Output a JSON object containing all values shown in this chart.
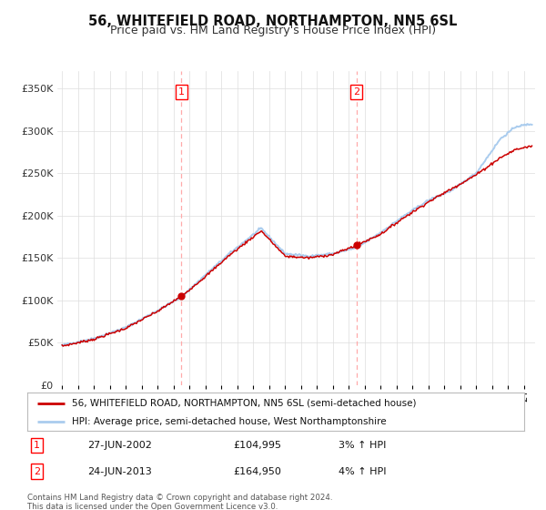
{
  "title": "56, WHITEFIELD ROAD, NORTHAMPTON, NN5 6SL",
  "subtitle": "Price paid vs. HM Land Registry's House Price Index (HPI)",
  "title_fontsize": 10.5,
  "subtitle_fontsize": 9,
  "legend_line1": "56, WHITEFIELD ROAD, NORTHAMPTON, NN5 6SL (semi-detached house)",
  "legend_line2": "HPI: Average price, semi-detached house, West Northamptonshire",
  "sale1_date": "27-JUN-2002",
  "sale1_price": "£104,995",
  "sale1_hpi": "3% ↑ HPI",
  "sale2_date": "24-JUN-2013",
  "sale2_price": "£164,950",
  "sale2_hpi": "4% ↑ HPI",
  "footnote": "Contains HM Land Registry data © Crown copyright and database right 2024.\nThis data is licensed under the Open Government Licence v3.0.",
  "hpi_color": "#aaccee",
  "price_color": "#cc0000",
  "vline_color": "#ffaaaa",
  "background_color": "#ffffff",
  "plot_bg_color": "#ffffff",
  "grid_color": "#dddddd",
  "ylim": [
    0,
    370000
  ],
  "yticks": [
    0,
    50000,
    100000,
    150000,
    200000,
    250000,
    300000,
    350000
  ],
  "ytick_labels": [
    "£0",
    "£50K",
    "£100K",
    "£150K",
    "£200K",
    "£250K",
    "£300K",
    "£350K"
  ],
  "sale1_x": 2002.49,
  "sale2_x": 2013.48,
  "sale1_y": 104995,
  "sale2_y": 164950,
  "xmin": 1995.0,
  "xmax": 2024.5
}
